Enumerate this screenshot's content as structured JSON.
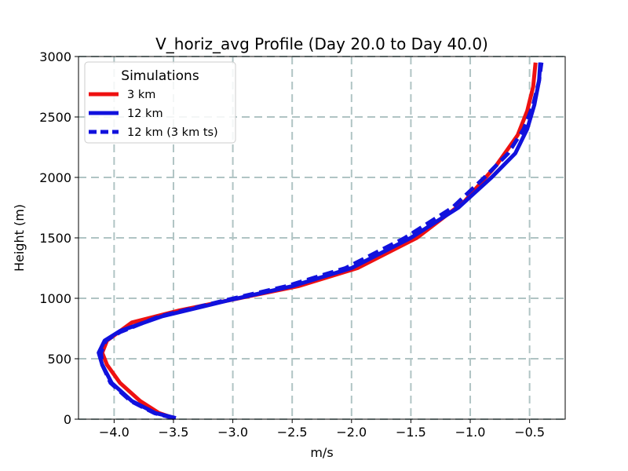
{
  "chart_data": {
    "type": "line",
    "title": "V_horiz_avg Profile (Day 20.0 to Day 40.0)",
    "xlabel": "m/s",
    "ylabel": "Height (m)",
    "xlim": [
      -4.3,
      -0.2
    ],
    "ylim": [
      0,
      3000
    ],
    "grid": true,
    "x_ticks": [
      -4.0,
      -3.5,
      -3.0,
      -2.5,
      -2.0,
      -1.5,
      -1.0,
      -0.5
    ],
    "x_tick_labels": [
      "−4.0",
      "−3.5",
      "−3.0",
      "−2.5",
      "−2.0",
      "−1.5",
      "−1.0",
      "−0.5"
    ],
    "y_ticks": [
      0,
      500,
      1000,
      1500,
      2000,
      2500,
      3000
    ],
    "y_tick_labels": [
      "0",
      "500",
      "1000",
      "1500",
      "2000",
      "2500",
      "3000"
    ],
    "legend": {
      "title": "Simulations",
      "placement": "top-left"
    },
    "series": [
      {
        "name": "3 km",
        "color": "#ee1111",
        "style": "solid",
        "x": [
          -3.5,
          -3.62,
          -3.78,
          -3.95,
          -4.06,
          -4.1,
          -4.06,
          -3.85,
          -3.45,
          -2.95,
          -2.45,
          -1.95,
          -1.45,
          -1.05,
          -0.78,
          -0.6,
          -0.52,
          -0.47,
          -0.45
        ],
        "y": [
          10,
          50,
          150,
          300,
          450,
          550,
          650,
          800,
          900,
          1000,
          1100,
          1250,
          1500,
          1800,
          2100,
          2350,
          2550,
          2750,
          2950
        ]
      },
      {
        "name": "12 km",
        "color": "#1111dd",
        "style": "solid",
        "x": [
          -3.48,
          -3.65,
          -3.85,
          -4.02,
          -4.1,
          -4.13,
          -4.08,
          -3.95,
          -3.6,
          -3.05,
          -2.5,
          -2.0,
          -1.5,
          -1.1,
          -0.82,
          -0.62,
          -0.52,
          -0.46,
          -0.42,
          -0.41
        ],
        "y": [
          10,
          50,
          150,
          300,
          450,
          550,
          650,
          730,
          850,
          980,
          1100,
          1250,
          1500,
          1750,
          2000,
          2200,
          2400,
          2600,
          2800,
          2950
        ]
      },
      {
        "name": "12 km (3 km ts)",
        "color": "#1111dd",
        "style": "dashed",
        "x": [
          -3.5,
          -3.66,
          -3.86,
          -4.03,
          -4.1,
          -4.11,
          -4.07,
          -3.95,
          -3.62,
          -3.08,
          -2.55,
          -2.05,
          -1.55,
          -1.15,
          -0.88,
          -0.68,
          -0.55,
          -0.47,
          -0.42,
          -0.4
        ],
        "y": [
          10,
          50,
          150,
          300,
          450,
          550,
          650,
          720,
          850,
          980,
          1100,
          1250,
          1500,
          1750,
          2000,
          2200,
          2400,
          2600,
          2800,
          2950
        ]
      }
    ]
  }
}
